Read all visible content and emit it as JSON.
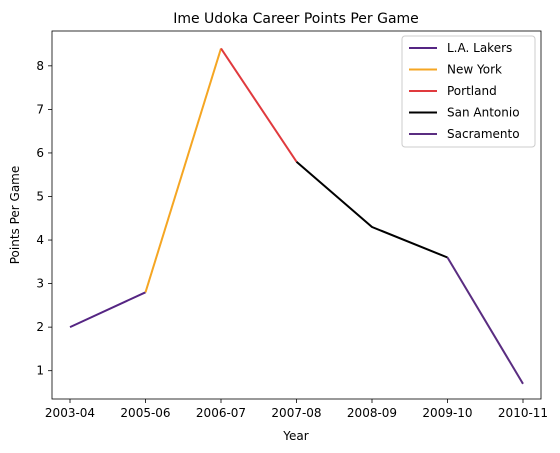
{
  "chart_data": {
    "type": "line",
    "title": "Ime Udoka Career Points Per Game",
    "xlabel": "Year",
    "ylabel": "Points Per Game",
    "categories": [
      "2003-04",
      "2005-06",
      "2006-07",
      "2007-08",
      "2008-09",
      "2009-10",
      "2010-11"
    ],
    "yticks": [
      "1",
      "2",
      "3",
      "4",
      "5",
      "6",
      "7",
      "8"
    ],
    "ylim": [
      0.35,
      8.8
    ],
    "grid": false,
    "legend_position": "top-right",
    "series": [
      {
        "name": "L.A. Lakers",
        "color": "#552583",
        "x": [
          "2003-04",
          "2005-06"
        ],
        "values": [
          2.0,
          2.8
        ]
      },
      {
        "name": "New York",
        "color": "#F5A623",
        "x": [
          "2005-06",
          "2006-07"
        ],
        "values": [
          2.8,
          8.4
        ]
      },
      {
        "name": "Portland",
        "color": "#E03A3E",
        "x": [
          "2006-07",
          "2007-08"
        ],
        "values": [
          8.4,
          5.8
        ]
      },
      {
        "name": "San Antonio",
        "color": "#000000",
        "x": [
          "2007-08",
          "2008-09",
          "2009-10"
        ],
        "values": [
          5.8,
          4.3,
          3.6
        ]
      },
      {
        "name": "Sacramento",
        "color": "#5A2D81",
        "x": [
          "2009-10",
          "2010-11"
        ],
        "values": [
          3.6,
          0.7
        ]
      }
    ]
  }
}
